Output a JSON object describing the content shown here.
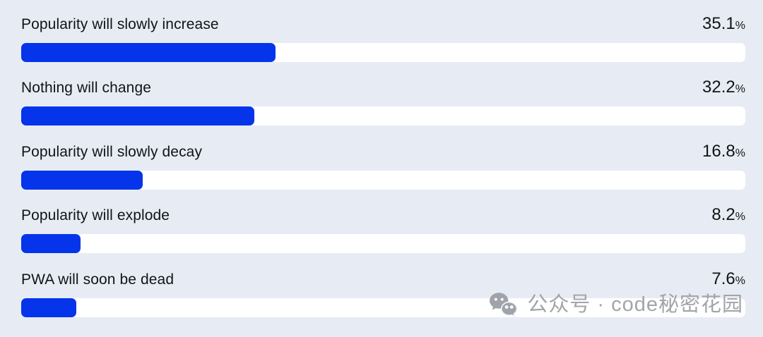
{
  "chart_data": {
    "type": "bar",
    "orientation": "horizontal",
    "categories": [
      "Popularity will slowly increase",
      "Nothing will change",
      "Popularity will slowly decay",
      "Popularity will explode",
      "PWA will soon be dead"
    ],
    "values": [
      35.1,
      32.2,
      16.8,
      8.2,
      7.6
    ],
    "unit": "%",
    "xlim": [
      0,
      100
    ],
    "legend": "none",
    "grid": false,
    "bar_color": "#0534eb",
    "track_color": "#ffffff",
    "background_color": "#e7ecf4"
  },
  "rows": [
    {
      "label": "Popularity will slowly increase",
      "value": 35.1,
      "value_label": "35.1",
      "unit": "%"
    },
    {
      "label": "Nothing will change",
      "value": 32.2,
      "value_label": "32.2",
      "unit": "%"
    },
    {
      "label": "Popularity will slowly decay",
      "value": 16.8,
      "value_label": "16.8",
      "unit": "%"
    },
    {
      "label": "Popularity will explode",
      "value": 8.2,
      "value_label": "8.2",
      "unit": "%"
    },
    {
      "label": "PWA will soon be dead",
      "value": 7.6,
      "value_label": "7.6",
      "unit": "%"
    }
  ],
  "watermark": {
    "icon": "wechat-icon",
    "text": "公众号 · code秘密花园",
    "color": "#a2a4aa"
  }
}
